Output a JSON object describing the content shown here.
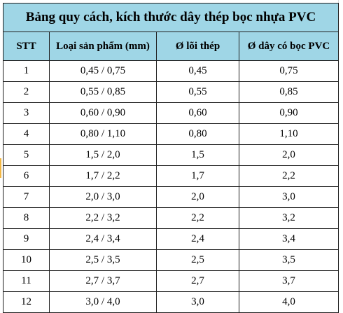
{
  "table": {
    "title": "Bảng quy cách, kích thước dây thép bọc nhựa PVC",
    "headers": [
      "STT",
      "Loại sản phẩm (mm)",
      "Ø lõi thép",
      "Ø dây có bọc PVC"
    ],
    "rows": [
      [
        "1",
        "0,45 / 0,75",
        "0,45",
        "0,75"
      ],
      [
        "2",
        "0,55 / 0,85",
        "0,55",
        "0,85"
      ],
      [
        "3",
        "0,60 / 0,90",
        "0,60",
        "0,90"
      ],
      [
        "4",
        "0,80 / 1,10",
        "0,80",
        "1,10"
      ],
      [
        "5",
        "1,5 / 2,0",
        "1,5",
        "2,0"
      ],
      [
        "6",
        "1,7 / 2,2",
        "1,7",
        "2,2"
      ],
      [
        "7",
        "2,0 / 3,0",
        "2,0",
        "3,0"
      ],
      [
        "8",
        "2,2 / 3,2",
        "2,2",
        "3,2"
      ],
      [
        "9",
        "2,4 / 3,4",
        "2,4",
        "3,4"
      ],
      [
        "10",
        "2,5 / 3,5",
        "2,5",
        "3,5"
      ],
      [
        "11",
        "2,7 / 3,7",
        "2,7",
        "3,7"
      ],
      [
        "12",
        "3,0 / 4,0",
        "3,0",
        "4,0"
      ]
    ]
  },
  "colors": {
    "header_fill": "#9fd6e6",
    "border": "#1f1f1f",
    "selection_marker": "#f2b642"
  }
}
